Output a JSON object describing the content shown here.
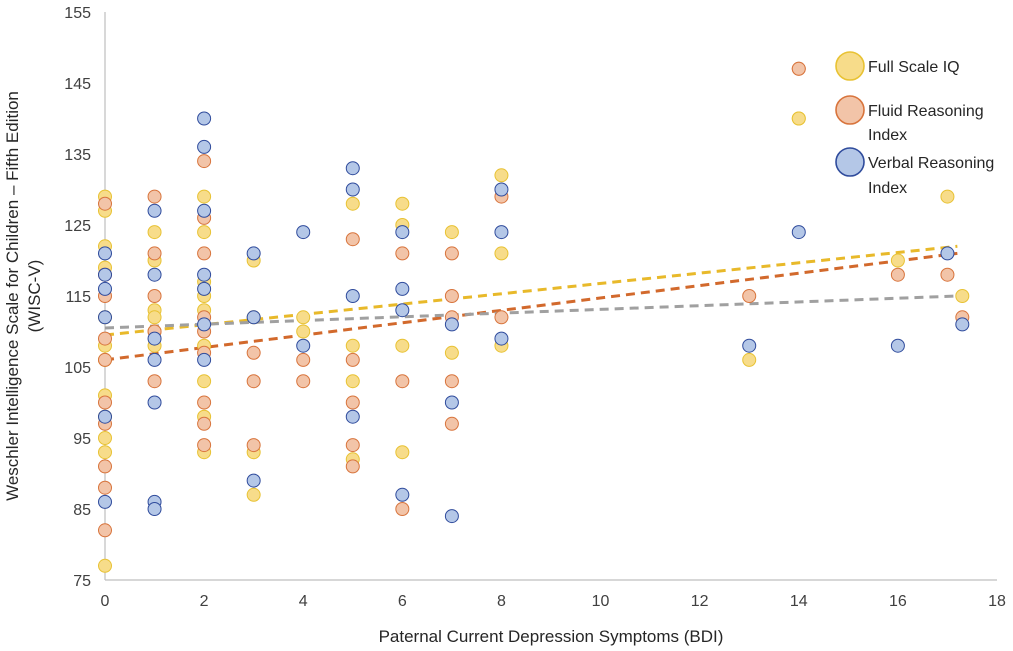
{
  "chart_data": {
    "type": "scatter",
    "title": "",
    "xlabel": "Paternal Current Depression Symptoms (BDI)",
    "ylabel": [
      "Weschler Intelligence Scale for Children – Fifth Edition",
      "(WISC-V)"
    ],
    "xlim": [
      0,
      18
    ],
    "ylim": [
      75,
      155
    ],
    "xticks": [
      0,
      2,
      4,
      6,
      8,
      10,
      12,
      14,
      16,
      18
    ],
    "yticks": [
      75,
      85,
      95,
      105,
      115,
      125,
      135,
      145,
      155
    ],
    "grid": false,
    "legend_position": "top-right",
    "series": [
      {
        "name": "Full Scale IQ",
        "legend_label": [
          "Full Scale IQ"
        ],
        "color": "#F7DC8A",
        "edge": "#E8C233",
        "trend_color": "#E8B92A",
        "trend": [
          [
            0,
            109.5
          ],
          [
            17.2,
            122
          ]
        ],
        "points": [
          [
            0,
            129
          ],
          [
            0,
            127
          ],
          [
            0,
            122
          ],
          [
            0,
            119
          ],
          [
            0,
            112
          ],
          [
            0,
            108
          ],
          [
            0,
            106
          ],
          [
            0,
            101
          ],
          [
            0,
            98
          ],
          [
            0,
            95
          ],
          [
            0,
            93
          ],
          [
            0,
            77
          ],
          [
            1,
            124
          ],
          [
            1,
            120
          ],
          [
            1,
            113
          ],
          [
            1,
            112
          ],
          [
            1,
            110
          ],
          [
            1,
            108
          ],
          [
            2,
            129
          ],
          [
            2,
            124
          ],
          [
            2,
            117
          ],
          [
            2,
            115
          ],
          [
            2,
            113
          ],
          [
            2,
            108
          ],
          [
            2,
            103
          ],
          [
            2,
            98
          ],
          [
            2,
            93
          ],
          [
            3,
            120
          ],
          [
            3,
            112
          ],
          [
            3,
            93
          ],
          [
            3,
            87
          ],
          [
            4,
            112
          ],
          [
            4,
            110
          ],
          [
            5,
            128
          ],
          [
            5,
            108
          ],
          [
            5,
            103
          ],
          [
            5,
            92
          ],
          [
            6,
            128
          ],
          [
            6,
            125
          ],
          [
            6,
            108
          ],
          [
            6,
            93
          ],
          [
            7,
            124
          ],
          [
            7,
            107
          ],
          [
            8,
            132
          ],
          [
            8,
            121
          ],
          [
            8,
            108
          ],
          [
            13,
            106
          ],
          [
            14,
            140
          ],
          [
            16,
            120
          ],
          [
            17.3,
            115
          ]
        ]
      },
      {
        "name": "Fluid Reasoning Index",
        "legend_label": [
          "Fluid Reasoning",
          "Index"
        ],
        "color": "#F2C4A8",
        "edge": "#D8743C",
        "trend_color": "#D2692C",
        "trend": [
          [
            0,
            106
          ],
          [
            17.2,
            121
          ]
        ],
        "points": [
          [
            0,
            128
          ],
          [
            0,
            118
          ],
          [
            0,
            115
          ],
          [
            0,
            109
          ],
          [
            0,
            106
          ],
          [
            0,
            100
          ],
          [
            0,
            97
          ],
          [
            0,
            91
          ],
          [
            0,
            88
          ],
          [
            0,
            82
          ],
          [
            1,
            129
          ],
          [
            1,
            121
          ],
          [
            1,
            115
          ],
          [
            1,
            110
          ],
          [
            1,
            103
          ],
          [
            2,
            134
          ],
          [
            2,
            126
          ],
          [
            2,
            121
          ],
          [
            2,
            112
          ],
          [
            2,
            110
          ],
          [
            2,
            107
          ],
          [
            2,
            100
          ],
          [
            2,
            97
          ],
          [
            2,
            94
          ],
          [
            3,
            107
          ],
          [
            3,
            103
          ],
          [
            3,
            94
          ],
          [
            4,
            106
          ],
          [
            4,
            103
          ],
          [
            5,
            123
          ],
          [
            5,
            106
          ],
          [
            5,
            100
          ],
          [
            5,
            94
          ],
          [
            5,
            91
          ],
          [
            6,
            121
          ],
          [
            6,
            103
          ],
          [
            6,
            85
          ],
          [
            7,
            121
          ],
          [
            7,
            115
          ],
          [
            7,
            112
          ],
          [
            7,
            103
          ],
          [
            7,
            97
          ],
          [
            8,
            129
          ],
          [
            8,
            112
          ],
          [
            13,
            115
          ],
          [
            14,
            147
          ],
          [
            16,
            118
          ],
          [
            17,
            118
          ],
          [
            17.3,
            112
          ]
        ]
      },
      {
        "name": "Verbal Reasoning Index",
        "legend_label": [
          "Verbal Reasoning",
          "Index"
        ],
        "color": "#B4C7E7",
        "edge": "#2F4B9C",
        "trend_color": "#A0A0A0",
        "trend": [
          [
            0,
            110.5
          ],
          [
            17.2,
            115
          ]
        ],
        "points": [
          [
            0,
            121
          ],
          [
            0,
            118
          ],
          [
            0,
            116
          ],
          [
            0,
            112
          ],
          [
            0,
            98
          ],
          [
            0,
            86
          ],
          [
            1,
            127
          ],
          [
            1,
            118
          ],
          [
            1,
            109
          ],
          [
            1,
            106
          ],
          [
            1,
            100
          ],
          [
            1,
            86
          ],
          [
            1,
            85
          ],
          [
            2,
            140
          ],
          [
            2,
            136
          ],
          [
            2,
            127
          ],
          [
            2,
            118
          ],
          [
            2,
            116
          ],
          [
            2,
            111
          ],
          [
            2,
            106
          ],
          [
            3,
            121
          ],
          [
            3,
            112
          ],
          [
            3,
            89
          ],
          [
            4,
            124
          ],
          [
            4,
            108
          ],
          [
            5,
            133
          ],
          [
            5,
            130
          ],
          [
            5,
            115
          ],
          [
            5,
            98
          ],
          [
            6,
            124
          ],
          [
            6,
            116
          ],
          [
            6,
            113
          ],
          [
            6,
            87
          ],
          [
            7,
            111
          ],
          [
            7,
            100
          ],
          [
            7,
            84
          ],
          [
            8,
            130
          ],
          [
            8,
            124
          ],
          [
            8,
            109
          ],
          [
            13,
            108
          ],
          [
            14,
            124
          ],
          [
            16,
            108
          ],
          [
            17,
            121
          ],
          [
            17.3,
            111
          ]
        ]
      }
    ],
    "extra_markers": [
      {
        "series": 1,
        "x": 14,
        "y": 147,
        "legend_area": true
      },
      {
        "series": 0,
        "x": 14,
        "y": 140,
        "legend_area": true
      },
      {
        "series": 0,
        "x": 17,
        "y": 129,
        "legend_area": true
      }
    ]
  }
}
